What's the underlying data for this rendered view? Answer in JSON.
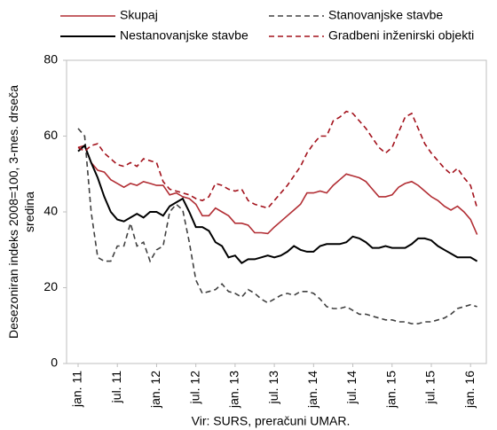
{
  "chart_data": {
    "type": "line",
    "y_label": [
      "Desezoniran indeks 2008=100, 3-mes. drseča",
      "sredina"
    ],
    "source": "Vir: SURS, preračuni UMAR.",
    "categories": [
      "jan. 11",
      null,
      null,
      null,
      null,
      null,
      "jul. 11",
      null,
      null,
      null,
      null,
      null,
      "jan. 12",
      null,
      null,
      null,
      null,
      null,
      "jul. 12",
      null,
      null,
      null,
      null,
      null,
      "jan. 13",
      null,
      null,
      null,
      null,
      null,
      "jul. 13",
      null,
      null,
      null,
      null,
      null,
      "jan. 14",
      null,
      null,
      null,
      null,
      null,
      "jul. 14",
      null,
      null,
      null,
      null,
      null,
      "jan. 15",
      null,
      null,
      null,
      null,
      null,
      "jul. 15",
      null,
      null,
      null,
      null,
      null,
      "jan. 16",
      null
    ],
    "ylim": [
      0,
      80
    ],
    "yticks": [
      0,
      20,
      40,
      60,
      80
    ],
    "grid": false,
    "legend_position": "top",
    "series": [
      {
        "name": "Skupaj",
        "color": "#b22e34",
        "dash": "solid",
        "values": [
          57,
          57.5,
          53,
          51,
          50.5,
          48.5,
          47.5,
          46.5,
          47.5,
          47,
          48,
          47.5,
          47,
          47,
          44.5,
          45,
          44,
          43.5,
          42,
          39,
          39,
          41,
          40,
          39,
          37,
          37,
          36.5,
          34.5,
          34.5,
          34.3,
          36,
          37.5,
          39,
          40.5,
          42,
          45,
          45,
          45.5,
          45,
          47,
          48.5,
          50,
          49.5,
          49,
          48,
          46,
          44,
          44,
          44.5,
          46.5,
          47.5,
          48,
          47,
          45.5,
          44,
          43,
          41.5,
          40.5,
          41.5,
          40,
          38,
          34
        ]
      },
      {
        "name": "Stanovanjske stavbe",
        "color": "#404040",
        "dash": "dashed",
        "values": [
          62,
          60,
          40,
          28,
          27,
          27,
          31,
          31,
          37,
          31,
          32,
          27,
          30,
          31,
          40,
          42,
          40.5,
          32,
          22,
          18.5,
          19,
          19.5,
          21,
          19,
          18.5,
          17.5,
          19.5,
          18.5,
          17,
          16,
          17,
          18,
          18.5,
          18,
          19,
          19,
          18.5,
          17,
          15,
          14.5,
          14.5,
          15,
          14,
          13,
          13,
          12.5,
          12,
          11.5,
          11.5,
          11,
          11,
          10.5,
          10.5,
          11,
          11,
          11.5,
          12,
          13,
          14.5,
          15,
          15.5,
          15
        ]
      },
      {
        "name": "Nestanovanjske stavbe",
        "color": "#000000",
        "dash": "solid",
        "values": [
          56,
          57.5,
          53,
          49,
          44,
          40,
          38,
          37.5,
          38.5,
          39.5,
          38.5,
          40,
          40,
          39,
          41.5,
          42.5,
          43.5,
          40,
          36,
          36,
          35,
          32,
          31,
          28,
          28.5,
          26.5,
          27.5,
          27.5,
          28,
          28.5,
          28,
          28.5,
          29.5,
          31,
          30,
          29.5,
          29.5,
          31,
          31.5,
          31.5,
          31.5,
          32,
          33.5,
          33,
          32,
          30.5,
          30.5,
          31,
          30.5,
          30.5,
          30.5,
          31.5,
          33,
          33,
          32.5,
          31,
          30,
          29,
          28,
          28,
          28,
          27
        ]
      },
      {
        "name": "Gradbeni inženirski objekti",
        "color": "#a3121c",
        "dash": "dashed",
        "values": [
          57,
          56,
          57.5,
          58,
          55.5,
          54,
          52.5,
          52,
          53,
          52,
          54,
          53.5,
          53,
          48,
          46,
          45.5,
          45,
          44.5,
          43.5,
          43,
          44,
          47.5,
          47,
          46,
          45.5,
          46,
          43,
          42,
          41.5,
          41,
          43,
          45,
          47,
          49.5,
          52,
          55.5,
          58,
          60,
          60,
          64,
          65,
          66.5,
          66,
          64,
          62,
          59.5,
          57,
          55.5,
          57,
          61,
          65,
          66,
          62,
          58,
          55.5,
          53.5,
          51.5,
          50,
          51.5,
          49,
          47,
          41
        ]
      }
    ]
  }
}
